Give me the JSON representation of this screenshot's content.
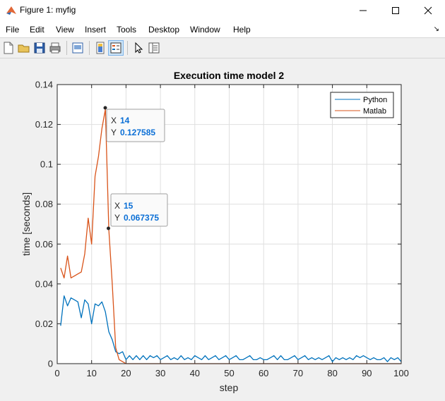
{
  "window": {
    "title": "Figure 1: myfig",
    "controls": [
      "minimize",
      "maximize",
      "close"
    ]
  },
  "menu": [
    "File",
    "Edit",
    "View",
    "Insert",
    "Tools",
    "Desktop",
    "Window",
    "Help"
  ],
  "toolbar": {
    "buttons": [
      "new-figure-icon",
      "open-file-icon",
      "save-icon",
      "print-icon",
      "print-preview-icon",
      "colorbar-icon",
      "legend-icon",
      "pointer-icon",
      "property-editor-icon"
    ],
    "active": [
      "legend-icon"
    ]
  },
  "colors": {
    "python": "#0072bd",
    "matlab": "#d95319",
    "datatip_value": "#0b6fd6"
  },
  "chart_data": {
    "type": "line",
    "title": "Execution time model 2",
    "xlabel": "step",
    "ylabel": "time [seconds]",
    "xlim": [
      0,
      100
    ],
    "ylim": [
      0,
      0.14
    ],
    "xticks": [
      0,
      10,
      20,
      30,
      40,
      50,
      60,
      70,
      80,
      90,
      100
    ],
    "xtick_labels": [
      "0",
      "10",
      "20",
      "30",
      "40",
      "50",
      "60",
      "70",
      "80",
      "90",
      "100"
    ],
    "yticks": [
      0,
      0.02,
      0.04,
      0.06,
      0.08,
      0.1,
      0.12,
      0.14
    ],
    "ytick_labels": [
      "0",
      "0.02",
      "0.04",
      "0.06",
      "0.08",
      "0.1",
      "0.12",
      "0.14"
    ],
    "grid": true,
    "legend_position": "top-right",
    "series": [
      {
        "name": "Python",
        "x": [
          1,
          2,
          3,
          4,
          5,
          6,
          7,
          8,
          9,
          10,
          11,
          12,
          13,
          14,
          15,
          16,
          17,
          18,
          19,
          20,
          21,
          22,
          23,
          24,
          25,
          26,
          27,
          28,
          29,
          30,
          31,
          32,
          33,
          34,
          35,
          36,
          37,
          38,
          39,
          40,
          41,
          42,
          43,
          44,
          45,
          46,
          47,
          48,
          49,
          50,
          51,
          52,
          53,
          54,
          55,
          56,
          57,
          58,
          59,
          60,
          61,
          62,
          63,
          64,
          65,
          66,
          67,
          68,
          69,
          70,
          71,
          72,
          73,
          74,
          75,
          76,
          77,
          78,
          79,
          80,
          81,
          82,
          83,
          84,
          85,
          86,
          87,
          88,
          89,
          90,
          91,
          92,
          93,
          94,
          95,
          96,
          97,
          98,
          99,
          100
        ],
        "y": [
          0.019,
          0.034,
          0.029,
          0.033,
          0.032,
          0.031,
          0.023,
          0.032,
          0.03,
          0.02,
          0.03,
          0.029,
          0.031,
          0.026,
          0.016,
          0.012,
          0.006,
          0.005,
          0.006,
          0.002,
          0.004,
          0.002,
          0.004,
          0.002,
          0.004,
          0.002,
          0.004,
          0.003,
          0.004,
          0.002,
          0.003,
          0.004,
          0.002,
          0.003,
          0.002,
          0.004,
          0.002,
          0.003,
          0.002,
          0.004,
          0.003,
          0.002,
          0.004,
          0.002,
          0.003,
          0.004,
          0.002,
          0.003,
          0.004,
          0.002,
          0.003,
          0.004,
          0.002,
          0.002,
          0.003,
          0.004,
          0.002,
          0.002,
          0.003,
          0.002,
          0.002,
          0.003,
          0.004,
          0.002,
          0.004,
          0.002,
          0.002,
          0.003,
          0.004,
          0.002,
          0.003,
          0.004,
          0.002,
          0.003,
          0.002,
          0.003,
          0.002,
          0.003,
          0.004,
          0.001,
          0.003,
          0.002,
          0.003,
          0.002,
          0.003,
          0.002,
          0.004,
          0.003,
          0.004,
          0.003,
          0.002,
          0.003,
          0.002,
          0.002,
          0.003,
          0.001,
          0.003,
          0.002,
          0.003,
          0.001
        ]
      },
      {
        "name": "Matlab",
        "x": [
          1,
          2,
          3,
          4,
          5,
          6,
          7,
          8,
          9,
          10,
          11,
          12,
          13,
          14,
          15,
          16,
          17,
          18,
          19,
          20,
          100
        ],
        "y": [
          0.048,
          0.043,
          0.054,
          0.043,
          0.044,
          0.045,
          0.046,
          0.055,
          0.073,
          0.06,
          0.094,
          0.104,
          0.118,
          0.127585,
          0.067375,
          0.04,
          0.008,
          0.002,
          0.001,
          0.0,
          0.0
        ]
      }
    ],
    "datatips": [
      {
        "x": "14",
        "y": "0.127585",
        "series": "Matlab"
      },
      {
        "x": "15",
        "y": "0.067375",
        "series": "Matlab"
      }
    ]
  }
}
